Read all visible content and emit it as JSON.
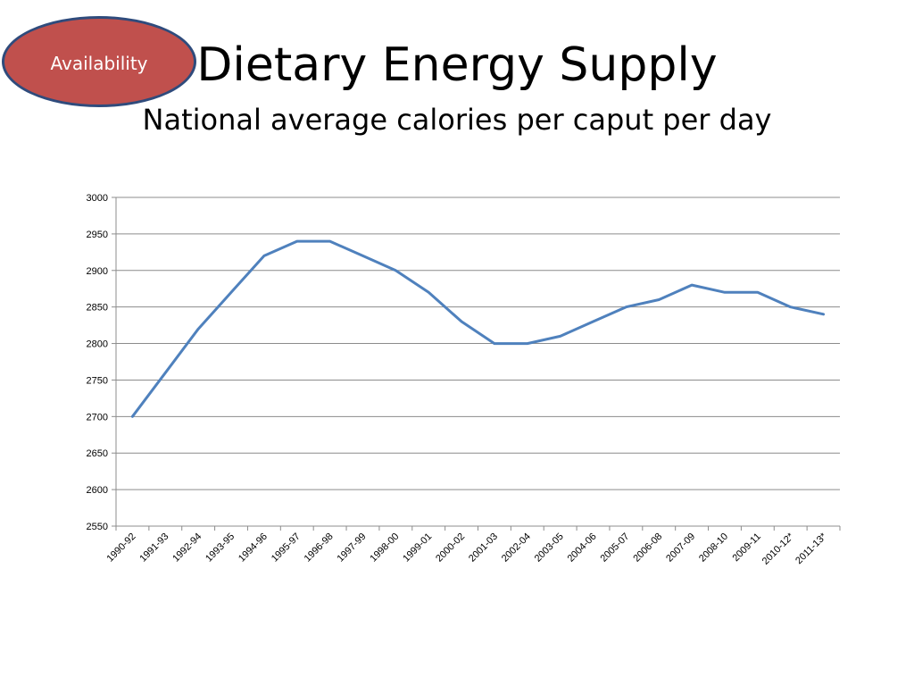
{
  "badge": {
    "label": "Availability"
  },
  "header": {
    "title": "Dietary Energy Supply",
    "subtitle": "National average calories per caput per day"
  },
  "chart_data": {
    "type": "line",
    "title": "Dietary Energy Supply",
    "subtitle": "National average calories per caput per day",
    "xlabel": "",
    "ylabel": "",
    "ylim": [
      2550,
      3000
    ],
    "yticks": [
      2550,
      2600,
      2650,
      2700,
      2750,
      2800,
      2850,
      2900,
      2950,
      3000
    ],
    "grid": true,
    "legend": "none",
    "line_color": "#4f81bd",
    "categories": [
      "1990-92",
      "1991-93",
      "1992-94",
      "1993-95",
      "1994-96",
      "1995-97",
      "1996-98",
      "1997-99",
      "1998-00",
      "1999-01",
      "2000-02",
      "2001-03",
      "2002-04",
      "2003-05",
      "2004-06",
      "2005-07",
      "2006-08",
      "2007-09",
      "2008-10",
      "2009-11",
      "2010-12*",
      "2011-13*"
    ],
    "series": [
      {
        "values": [
          2700,
          2760,
          2820,
          2870,
          2920,
          2940,
          2940,
          2920,
          2900,
          2870,
          2830,
          2800,
          2800,
          2810,
          2830,
          2850,
          2860,
          2880,
          2870,
          2870,
          2850,
          2840
        ]
      }
    ]
  }
}
